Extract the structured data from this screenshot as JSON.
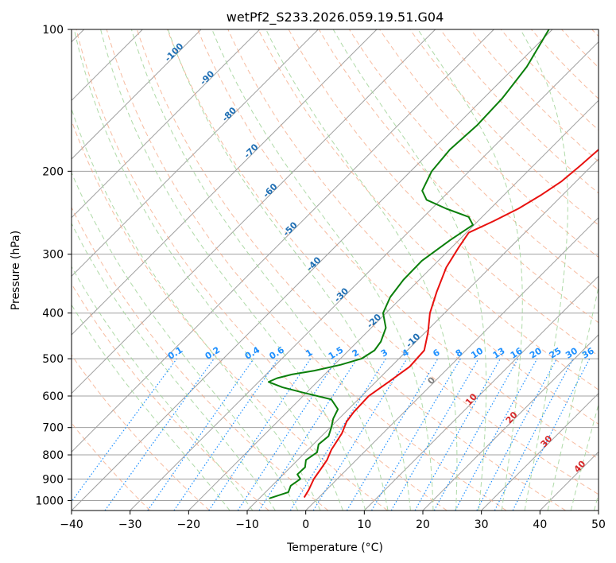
{
  "chart_data": {
    "type": "line",
    "subtype": "skew-t log-p diagram",
    "title": "wetPf2_S233.2026.059.19.51.G04",
    "xlabel": "Temperature (°C)",
    "ylabel": "Pressure (hPa)",
    "xlim": [
      -40,
      50
    ],
    "ylim": [
      1050,
      100
    ],
    "y_scale": "log",
    "x_ticks": [
      "−40",
      "−30",
      "−20",
      "−10",
      "0",
      "10",
      "20",
      "30",
      "40",
      "50"
    ],
    "x_tick_values": [
      -40,
      -30,
      -20,
      -10,
      0,
      10,
      20,
      30,
      40,
      50
    ],
    "y_ticks": [
      "100",
      "200",
      "300",
      "400",
      "500",
      "600",
      "700",
      "800",
      "900",
      "1000"
    ],
    "y_tick_values": [
      100,
      200,
      300,
      400,
      500,
      600,
      700,
      800,
      900,
      1000
    ],
    "grid": true,
    "colors": {
      "temperature": "#e8110f",
      "dewpoint": "#0a7f0a",
      "isotherm": "#a0a0a0",
      "dry_adiabat": "#f4a582",
      "moist_adiabat": "#a6d69f",
      "mixing_ratio": "#1e90ff",
      "dry_label": "#1f6fb4",
      "moist_label": "#d62728",
      "theta_e": "#d9b38c"
    },
    "series": [
      {
        "name": "Temperature",
        "p": [
          985,
          950,
          900,
          850,
          820,
          780,
          720,
          680,
          650,
          600,
          560,
          520,
          480,
          440,
          400,
          360,
          320,
          290,
          270,
          255,
          240,
          225,
          210,
          195,
          180,
          160,
          140,
          120,
          100
        ],
        "t": [
          -2.5,
          -3.0,
          -4.0,
          -4.6,
          -5.0,
          -6.0,
          -7.0,
          -8.2,
          -8.6,
          -8.8,
          -7.8,
          -6.8,
          -7.1,
          -9.5,
          -12.5,
          -15.0,
          -17.5,
          -18.8,
          -19.6,
          -17.3,
          -15.2,
          -13.7,
          -12.5,
          -12.0,
          -11.6,
          -11.2,
          -11.6,
          -12.1,
          -13.3
        ]
      },
      {
        "name": "Dewpoint",
        "p": [
          990,
          960,
          930,
          900,
          880,
          850,
          820,
          790,
          760,
          730,
          700,
          670,
          640,
          610,
          590,
          575,
          560,
          550,
          540,
          530,
          515,
          500,
          480,
          460,
          430,
          400,
          370,
          340,
          310,
          280,
          260,
          250,
          240,
          230,
          220,
          200,
          180,
          160,
          140,
          120,
          100
        ],
        "t": [
          -8.3,
          -6.1,
          -6.8,
          -6.3,
          -7.6,
          -7.5,
          -8.6,
          -8.0,
          -9.1,
          -8.8,
          -9.8,
          -11.0,
          -11.8,
          -14.6,
          -20.6,
          -25.0,
          -28.3,
          -27.5,
          -25.6,
          -22.4,
          -18.9,
          -16.4,
          -15.6,
          -16.0,
          -17.5,
          -20.5,
          -22.0,
          -22.7,
          -22.8,
          -21.5,
          -20.2,
          -22.3,
          -27.6,
          -32.4,
          -34.7,
          -36.4,
          -37.0,
          -36.5,
          -36.8,
          -38.0,
          -40.6
        ]
      }
    ],
    "dry_adiabat_labels": [
      "-100",
      "-90",
      "-80",
      "-70",
      "-60",
      "-50",
      "-40",
      "-30",
      "-20",
      "-10"
    ],
    "mixing_ratio_labels": [
      "0.1",
      "0.2",
      "0.4",
      "0.6",
      "1",
      "1.5",
      "2",
      "3",
      "4",
      "6",
      "8",
      "10",
      "13",
      "16",
      "20",
      "25",
      "30",
      "36"
    ],
    "moist_adiabat_labels": [
      "0",
      "10",
      "20",
      "30",
      "40"
    ]
  }
}
